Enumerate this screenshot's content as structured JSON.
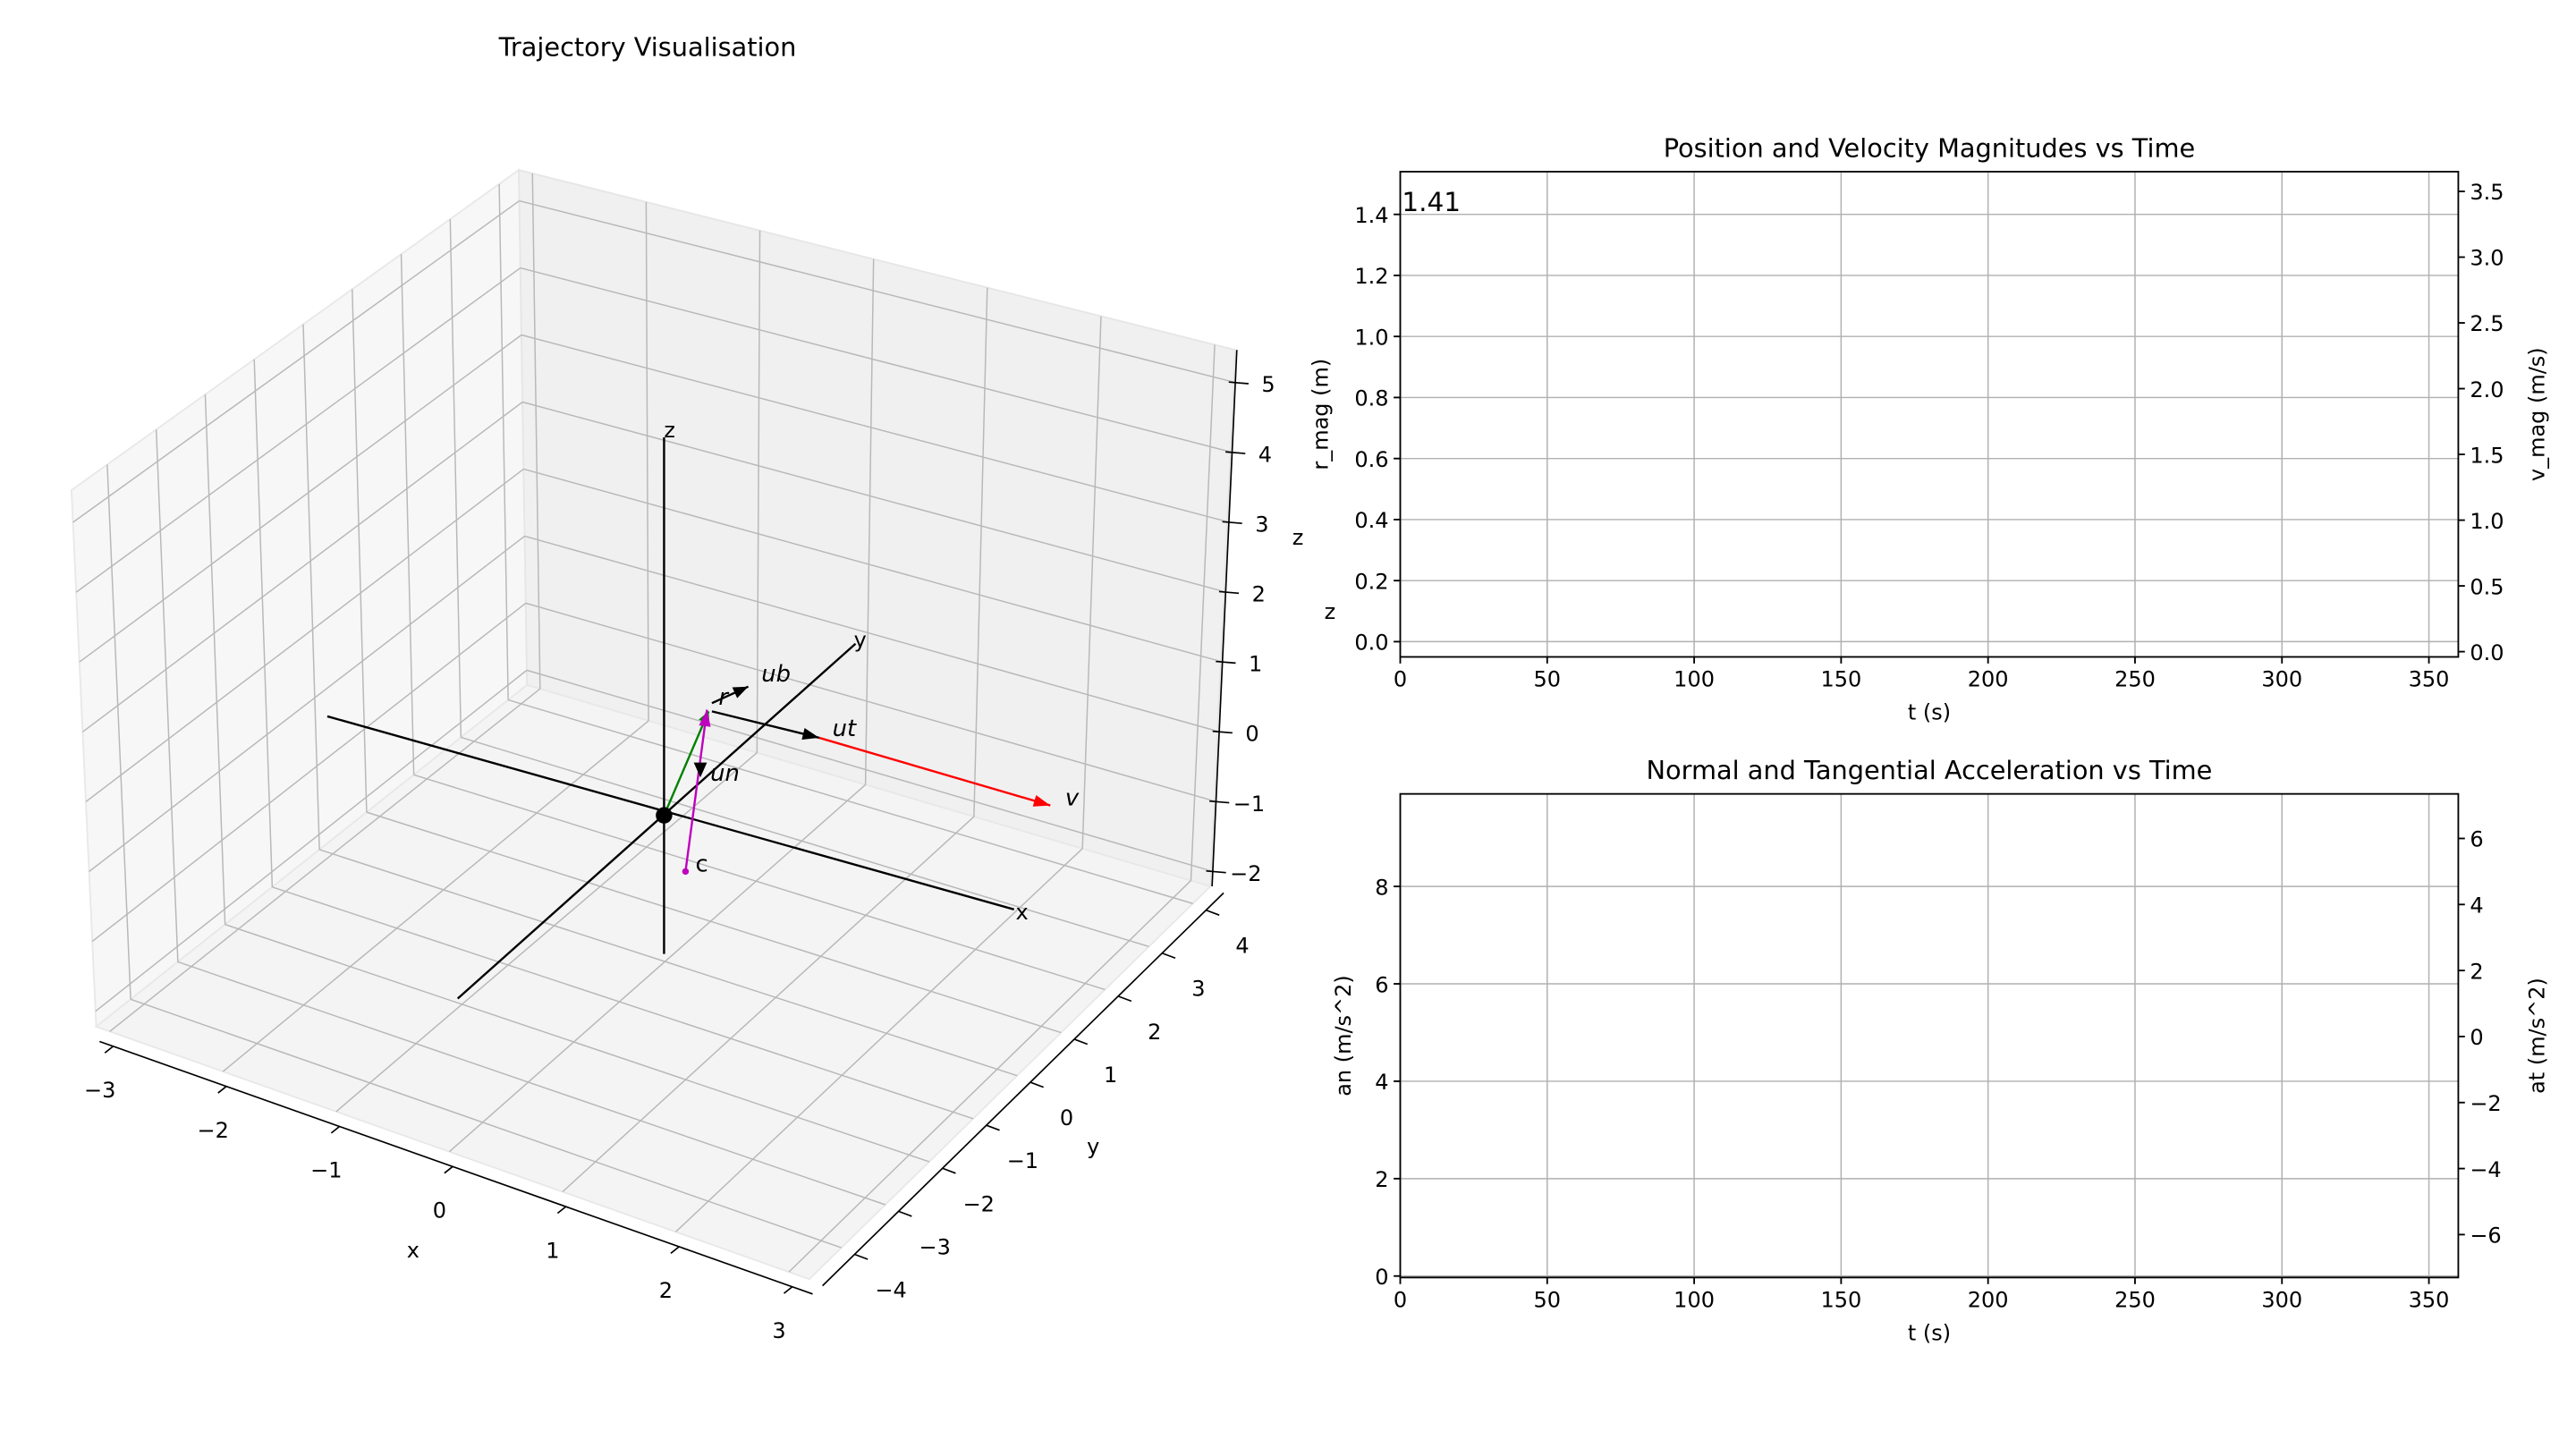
{
  "figure": {
    "left_title": "Trajectory Visualisation"
  },
  "chart_data": [
    {
      "type": "scatter",
      "title": "Trajectory Visualisation",
      "projection": "3d",
      "xlabel": "x",
      "ylabel": "y",
      "zlabel": "z",
      "xlim": [
        -3.12,
        3.18
      ],
      "ylim": [
        -4.73,
        4.4
      ],
      "zlim": [
        -2.22,
        5.46
      ],
      "xticks": [
        -3,
        -2,
        -1,
        0,
        1,
        2,
        3
      ],
      "yticks": [
        -4,
        -3,
        -2,
        -1,
        0,
        1,
        2,
        3,
        4
      ],
      "zticks": [
        -2,
        -1,
        0,
        1,
        2,
        3,
        4,
        5
      ],
      "tick_labels": {
        "x": [
          "−3",
          "−2",
          "−1",
          "0",
          "1",
          "2",
          "3"
        ],
        "y": [
          "−4",
          "−3",
          "−2",
          "−1",
          "0",
          "1",
          "2",
          "3",
          "4"
        ],
        "z": [
          "−2",
          "−1",
          "0",
          "1",
          "2",
          "3",
          "4",
          "5"
        ]
      },
      "reference_axes": {
        "x_label": "x",
        "y_label": "y",
        "z_label": "z"
      },
      "vectors": [
        {
          "name": "r",
          "label": "r",
          "color": "#008000"
        },
        {
          "name": "c",
          "label": "c",
          "color": "#bf00bf"
        },
        {
          "name": "ut",
          "label": "ut",
          "color": "#000000"
        },
        {
          "name": "v",
          "label": "v",
          "color": "#ff0000"
        },
        {
          "name": "ub",
          "label": "ub",
          "color": "#000000"
        },
        {
          "name": "un",
          "label": "un",
          "color": "#000000"
        }
      ],
      "grid": true
    },
    {
      "type": "line",
      "title": "Position and Velocity Magnitudes vs Time",
      "xlabel": "t (s)",
      "ylabel": "r_mag (m)",
      "ylabel_color": "#008000",
      "y2label": "v_mag (m/s)",
      "y2label_color": "#ff0000",
      "extra_label": "z",
      "xlim": [
        0,
        360
      ],
      "ylim": [
        -0.05,
        1.54
      ],
      "y2lim": [
        -0.04,
        3.65
      ],
      "xticks": [
        0,
        50,
        100,
        150,
        200,
        250,
        300,
        350
      ],
      "yticks": [
        0.0,
        0.2,
        0.4,
        0.6,
        0.8,
        1.0,
        1.2,
        1.4
      ],
      "ytick_labels": [
        "0.0",
        "0.2",
        "0.4",
        "0.6",
        "0.8",
        "1.0",
        "1.2",
        "1.4"
      ],
      "y2ticks": [
        0.0,
        0.5,
        1.0,
        1.5,
        2.0,
        2.5,
        3.0,
        3.5
      ],
      "y2tick_labels": [
        "0.0",
        "0.5",
        "1.0",
        "1.5",
        "2.0",
        "2.5",
        "3.0",
        "3.5"
      ],
      "annotation": {
        "text": "1.41",
        "color": "#008000"
      },
      "series": [],
      "grid": true
    },
    {
      "type": "line",
      "title": "Normal and Tangential Acceleration vs Time",
      "xlabel": "t (s)",
      "ylabel": "an (m/s^2)",
      "ylabel_color": "#00bfbf",
      "y2label": "at (m/s^2)",
      "y2label_color": "#bfbf00",
      "xlim": [
        0,
        360
      ],
      "ylim": [
        -0.03,
        9.9
      ],
      "y2lim": [
        -7.3,
        7.35
      ],
      "xticks": [
        0,
        50,
        100,
        150,
        200,
        250,
        300,
        350
      ],
      "yticks": [
        0,
        2,
        4,
        6,
        8
      ],
      "ytick_labels": [
        "0",
        "2",
        "4",
        "6",
        "8"
      ],
      "y2ticks": [
        -6,
        -4,
        -2,
        0,
        2,
        4,
        6
      ],
      "y2tick_labels": [
        "−6",
        "−4",
        "−2",
        "0",
        "2",
        "4",
        "6"
      ],
      "series": [],
      "grid": true
    }
  ]
}
